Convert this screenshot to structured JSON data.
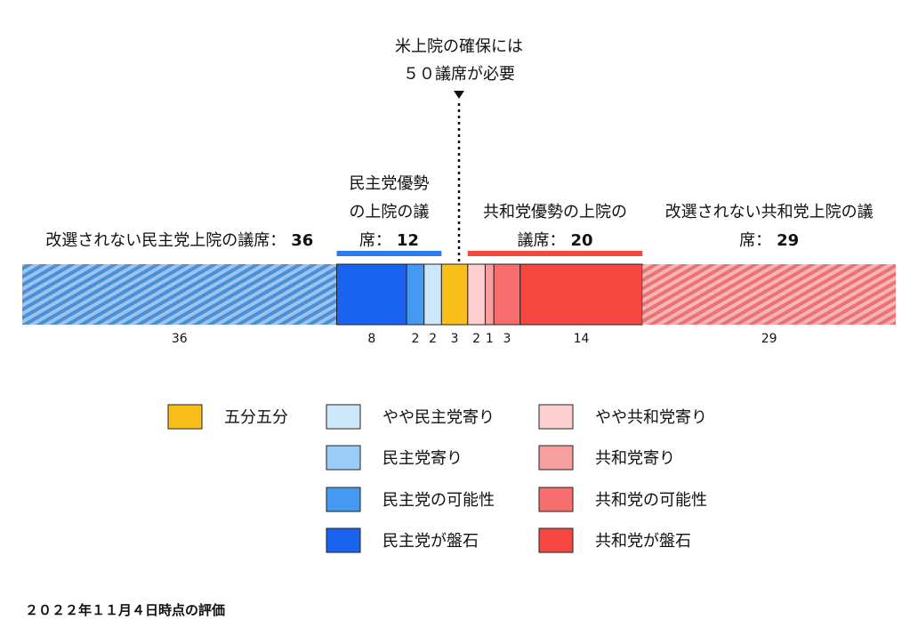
{
  "chart_data": {
    "type": "bar",
    "orientation": "horizontal-stacked",
    "total_seats": 100,
    "threshold": {
      "value": 50,
      "label_line1": "米上院の確保には",
      "label_line2": "５０議席が必要"
    },
    "segments": [
      {
        "key": "dem_holdover",
        "value": 36,
        "label": "36",
        "color": "#5b9bd5",
        "hatched": true
      },
      {
        "key": "dem_solid",
        "value": 8,
        "label": "8",
        "color": "#1a62f0"
      },
      {
        "key": "dem_likely",
        "value": 2,
        "label": "2",
        "color": "#4499f0"
      },
      {
        "key": "dem_lean",
        "value": 2,
        "label": "2",
        "color": "#cce6fa"
      },
      {
        "key": "tossup",
        "value": 3,
        "label": "3",
        "color": "#fbbf1c"
      },
      {
        "key": "rep_lean",
        "value": 2,
        "label": "2",
        "color": "#fdd0d0"
      },
      {
        "key": "rep_tilt",
        "value": 1,
        "label": "1",
        "color": "#f79e9e"
      },
      {
        "key": "rep_likely",
        "value": 3,
        "label": "3",
        "color": "#f76c6c"
      },
      {
        "key": "rep_solid",
        "value": 14,
        "label": "14",
        "color": "#f5463f"
      },
      {
        "key": "rep_holdover",
        "value": 29,
        "label": "29",
        "color": "#f08080",
        "hatched": true
      }
    ],
    "groups": [
      {
        "key": "dem_holdover_label",
        "from": 0,
        "to": 36,
        "lines": [
          "改選されない民主党上院の議席："
        ],
        "value": "36",
        "bar": false
      },
      {
        "key": "dem_favored",
        "from": 36,
        "to": 48,
        "lines": [
          "民主党優勢",
          "の上院の議",
          "席："
        ],
        "value": "12",
        "bar": true,
        "bar_color": "#2e7bf0"
      },
      {
        "key": "rep_favored",
        "from": 51,
        "to": 71,
        "lines": [
          "共和党優勢の上院の",
          "議席："
        ],
        "value": "20",
        "bar": true,
        "bar_color": "#f5463f"
      },
      {
        "key": "rep_holdover_label",
        "from": 71,
        "to": 100,
        "lines": [
          "改選されない共和党上院の議",
          "席："
        ],
        "value": "29",
        "bar": false
      }
    ],
    "legend": {
      "columns": [
        [
          {
            "label": "五分五分",
            "color": "#fbbf1c"
          }
        ],
        [
          {
            "label": "やや民主党寄り",
            "color": "#cce6fa"
          },
          {
            "label": "民主党寄り",
            "color": "#99cdf7"
          },
          {
            "label": "民主党の可能性",
            "color": "#4499f0"
          },
          {
            "label": "民主党が盤石",
            "color": "#1a62f0"
          }
        ],
        [
          {
            "label": "やや共和党寄り",
            "color": "#fdd0d0"
          },
          {
            "label": "共和党寄り",
            "color": "#f79e9e"
          },
          {
            "label": "共和党の可能性",
            "color": "#f76c6c"
          },
          {
            "label": "共和党が盤石",
            "color": "#f5463f"
          }
        ]
      ]
    },
    "footnote": "２０２２年１１月４日時点の評価"
  }
}
